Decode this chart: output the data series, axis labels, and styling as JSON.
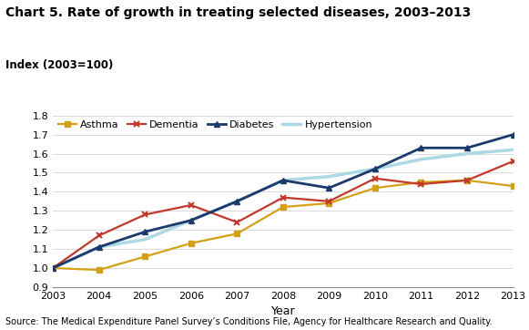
{
  "title": "Chart 5. Rate of growth in treating selected diseases, 2003–2013",
  "ylabel": "Index (2003=100)",
  "xlabel": "Year",
  "source": "Source: The Medical Expenditure Panel Survey’s Conditions File, Agency for Healthcare Research and Quality.",
  "years": [
    2003,
    2004,
    2005,
    2006,
    2007,
    2008,
    2009,
    2010,
    2011,
    2012,
    2013
  ],
  "asthma": [
    1.0,
    0.99,
    1.06,
    1.13,
    1.18,
    1.32,
    1.34,
    1.42,
    1.45,
    1.46,
    1.43
  ],
  "dementia": [
    1.0,
    1.17,
    1.28,
    1.33,
    1.24,
    1.37,
    1.35,
    1.47,
    1.44,
    1.46,
    1.56
  ],
  "diabetes": [
    1.0,
    1.11,
    1.19,
    1.25,
    1.35,
    1.46,
    1.42,
    1.52,
    1.63,
    1.63,
    1.7
  ],
  "hypertension": [
    1.0,
    1.11,
    1.15,
    1.25,
    1.35,
    1.46,
    1.48,
    1.52,
    1.57,
    1.6,
    1.62
  ],
  "colors": {
    "asthma": "#D4A017",
    "dementia": "#C0392B",
    "diabetes": "#1B3A6B",
    "hypertension": "#ADD8E6"
  },
  "ylim": [
    0.9,
    1.8
  ],
  "yticks": [
    0.9,
    1.0,
    1.1,
    1.2,
    1.3,
    1.4,
    1.5,
    1.6,
    1.7,
    1.8
  ],
  "title_fontsize": 10,
  "ylabel_fontsize": 8.5,
  "xlabel_fontsize": 9,
  "tick_fontsize": 8,
  "legend_fontsize": 8,
  "source_fontsize": 7
}
